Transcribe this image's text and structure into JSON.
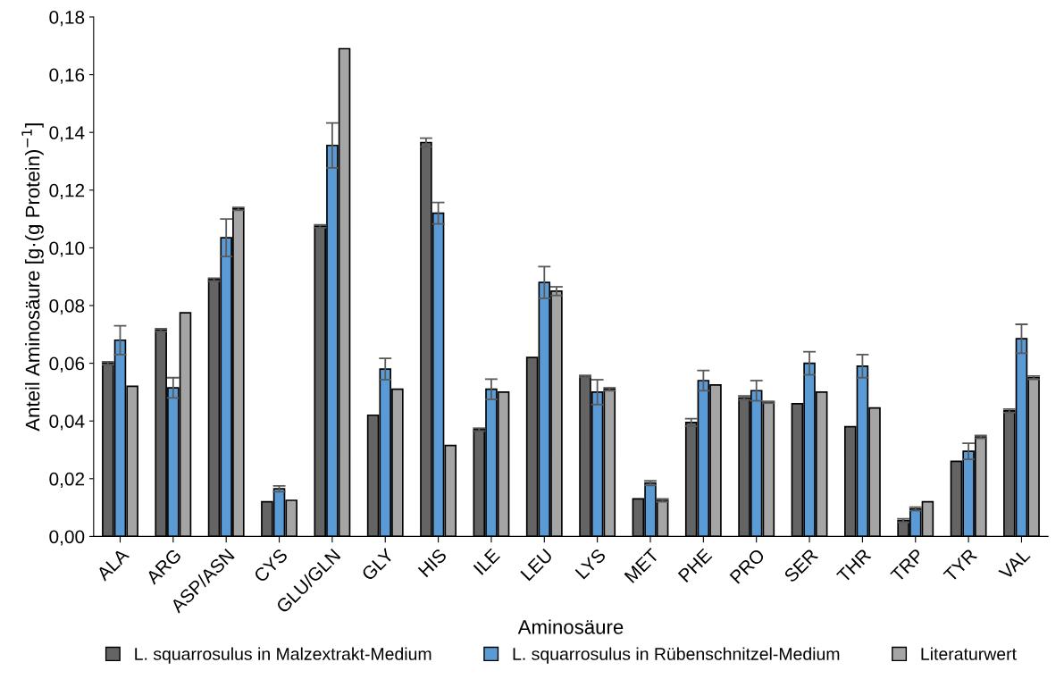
{
  "chart_data": {
    "type": "bar",
    "xlabel": "Aminosäure",
    "ylabel": "Anteil Aminosäure [g·(g Protein)$^{−1}$]",
    "categories": [
      "ALA",
      "ARG",
      "ASP/ASN",
      "CYS",
      "GLU/GLN",
      "GLY",
      "HIS",
      "ILE",
      "LEU",
      "LYS",
      "MET",
      "PHE",
      "PRO",
      "SER",
      "THR",
      "TRP",
      "TYR",
      "VAL"
    ],
    "series": [
      {
        "name": "L. squarrosulus in Malzextrakt-Medium",
        "color": "#646464",
        "values": [
          0.06,
          0.0715,
          0.089,
          0.012,
          0.1075,
          0.042,
          0.1365,
          0.037,
          0.062,
          0.0555,
          0.013,
          0.0395,
          0.048,
          0.046,
          0.038,
          0.0055,
          0.026,
          0.0435
        ],
        "errors": [
          0.0005,
          0.0005,
          0.0005,
          null,
          0.0005,
          null,
          0.0015,
          0.0005,
          null,
          0.0003,
          null,
          0.0013,
          0.0007,
          null,
          null,
          0.0006,
          null,
          0.0006
        ]
      },
      {
        "name": "L. squarrosulus in Rübenschnitzel-Medium",
        "color": "#5b9bd5",
        "values": [
          0.068,
          0.0515,
          0.1035,
          0.0165,
          0.1355,
          0.058,
          0.112,
          0.051,
          0.088,
          0.05,
          0.0185,
          0.054,
          0.0505,
          0.06,
          0.059,
          0.0095,
          0.0295,
          0.0685
        ],
        "errors": [
          0.005,
          0.0035,
          0.0065,
          0.001,
          0.0078,
          0.0037,
          0.0037,
          0.0035,
          0.0055,
          0.0043,
          0.0008,
          0.0035,
          0.0035,
          0.004,
          0.004,
          0.0006,
          0.0028,
          0.005
        ]
      },
      {
        "name": "Literaturwert",
        "color": "#a5a5a5",
        "values": [
          0.052,
          0.0775,
          0.1135,
          0.0125,
          0.169,
          0.051,
          0.0315,
          0.05,
          0.085,
          0.051,
          0.0125,
          0.0525,
          0.0465,
          0.05,
          0.0445,
          0.012,
          0.0345,
          0.055
        ],
        "errors": [
          null,
          null,
          0.0005,
          null,
          null,
          null,
          null,
          null,
          0.0015,
          0.0005,
          0.0005,
          null,
          0.0003,
          null,
          null,
          null,
          0.0005,
          0.0006
        ]
      }
    ],
    "ylim": [
      0,
      0.18
    ],
    "yticks": [
      {
        "value": 0,
        "label": "0,00"
      },
      {
        "value": 0.02,
        "label": "0,02"
      },
      {
        "value": 0.04,
        "label": "0,04"
      },
      {
        "value": 0.06,
        "label": "0,06"
      },
      {
        "value": 0.08,
        "label": "0,08"
      },
      {
        "value": 0.1,
        "label": "0,10"
      },
      {
        "value": 0.12,
        "label": "0,12"
      },
      {
        "value": 0.14,
        "label": "0,14"
      },
      {
        "value": 0.16,
        "label": "0,16"
      },
      {
        "value": 0.18,
        "label": "0,18"
      }
    ],
    "grid": false,
    "legend": "bottom"
  }
}
